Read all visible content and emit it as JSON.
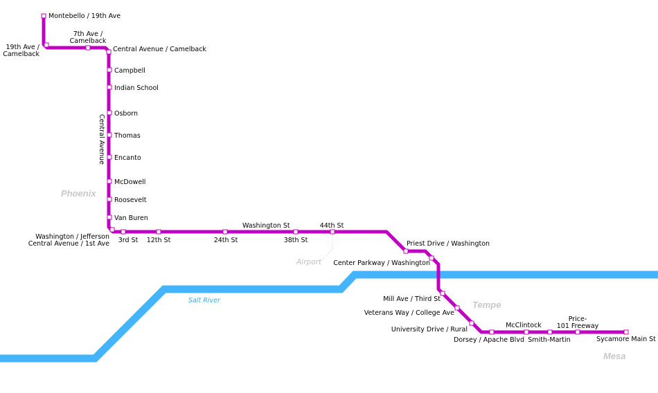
{
  "colors": {
    "line": "#c000c0",
    "river": "#44b4ff",
    "area_label": "#c8c8c8",
    "station_fill": "#ffffff"
  },
  "areas": {
    "phoenix": "Phoenix",
    "tempe": "Tempe",
    "mesa": "Mesa"
  },
  "river": {
    "name": "Salt River"
  },
  "street_labels": {
    "central_avenue": "Central Avenue",
    "washington_st": "Washington St"
  },
  "airport": {
    "label": "Airport"
  },
  "stations": [
    {
      "name": [
        "Montebello / 19th Ave"
      ]
    },
    {
      "name": [
        "19th Ave /",
        "Camelback"
      ]
    },
    {
      "name": [
        "7th Ave /",
        "Camelback"
      ]
    },
    {
      "name": [
        "Central Avenue / Camelback"
      ]
    },
    {
      "name": [
        "Campbell"
      ]
    },
    {
      "name": [
        "Indian School"
      ]
    },
    {
      "name": [
        "Osborn"
      ]
    },
    {
      "name": [
        "Thomas"
      ]
    },
    {
      "name": [
        "Encanto"
      ]
    },
    {
      "name": [
        "McDowell"
      ]
    },
    {
      "name": [
        "Roosevelt"
      ]
    },
    {
      "name": [
        "Van Buren"
      ]
    },
    {
      "name": [
        "Washington / Jefferson",
        "Central Avenue / 1st Ave"
      ]
    },
    {
      "name": [
        "3rd St"
      ]
    },
    {
      "name": [
        "12th St"
      ]
    },
    {
      "name": [
        "24th St"
      ]
    },
    {
      "name": [
        "38th St"
      ]
    },
    {
      "name": [
        "44th St"
      ]
    },
    {
      "name": [
        "Priest Drive / Washington"
      ]
    },
    {
      "name": [
        "Center Parkway / Washington"
      ]
    },
    {
      "name": [
        "Mill Ave / Third St"
      ]
    },
    {
      "name": [
        "Veterans Way / College Ave"
      ]
    },
    {
      "name": [
        "University Drive / Rural"
      ]
    },
    {
      "name": [
        "Dorsey / Apache Blvd"
      ]
    },
    {
      "name": [
        "McClintock"
      ]
    },
    {
      "name": [
        "Smith-Martin"
      ]
    },
    {
      "name": [
        "Price-",
        "101 Freeway"
      ]
    },
    {
      "name": [
        "Sycamore Main St"
      ]
    }
  ]
}
